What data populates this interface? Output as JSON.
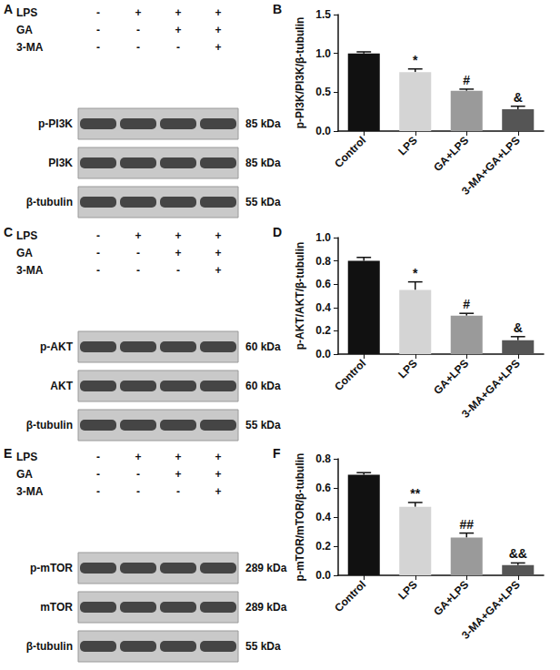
{
  "blots": [
    {
      "panel": "A",
      "treatments": [
        {
          "name": "LPS",
          "lanes": [
            "-",
            "+",
            "+",
            "+"
          ]
        },
        {
          "name": "GA",
          "lanes": [
            "-",
            "-",
            "+",
            "+"
          ]
        },
        {
          "name": "3-MA",
          "lanes": [
            "-",
            "-",
            "-",
            "+"
          ]
        }
      ],
      "bands": [
        {
          "name": "p-PI3K",
          "size": "85 kDa"
        },
        {
          "name": "PI3K",
          "size": "85 kDa"
        },
        {
          "name": "β-tubulin",
          "size": "55 kDa"
        }
      ]
    },
    {
      "panel": "C",
      "treatments": [
        {
          "name": "LPS",
          "lanes": [
            "-",
            "+",
            "+",
            "+"
          ]
        },
        {
          "name": "GA",
          "lanes": [
            "-",
            "-",
            "+",
            "+"
          ]
        },
        {
          "name": "3-MA",
          "lanes": [
            "-",
            "-",
            "-",
            "+"
          ]
        }
      ],
      "bands": [
        {
          "name": "p-AKT",
          "size": "60 kDa"
        },
        {
          "name": "AKT",
          "size": "60 kDa"
        },
        {
          "name": "β-tubulin",
          "size": "55 kDa"
        }
      ]
    },
    {
      "panel": "E",
      "treatments": [
        {
          "name": "LPS",
          "lanes": [
            "-",
            "+",
            "+",
            "+"
          ]
        },
        {
          "name": "GA",
          "lanes": [
            "-",
            "-",
            "+",
            "+"
          ]
        },
        {
          "name": "3-MA",
          "lanes": [
            "-",
            "-",
            "-",
            "+"
          ]
        }
      ],
      "bands": [
        {
          "name": "p-mTOR",
          "size": "289 kDa"
        },
        {
          "name": "mTOR",
          "size": "289 kDa"
        },
        {
          "name": "β-tubulin",
          "size": "55 kDa"
        }
      ]
    }
  ],
  "chart_data": [
    {
      "panel": "B",
      "type": "bar",
      "categories": [
        "Control",
        "LPS",
        "GA+LPS",
        "3-MA+GA+LPS"
      ],
      "values": [
        1.0,
        0.76,
        0.52,
        0.28
      ],
      "errors": [
        0.02,
        0.04,
        0.02,
        0.04
      ],
      "annotations": [
        null,
        "*",
        "#",
        "&"
      ],
      "colors": [
        "#111111",
        "#d4d4d4",
        "#9a9a9a",
        "#555555"
      ],
      "y_label": "p-PI3K/PI3K/β-tubulin",
      "ylim": [
        0,
        1.5
      ],
      "yticks": [
        {
          "value": 0,
          "label": "0.0"
        },
        0.5,
        {
          "value": 1,
          "label": "1.0"
        },
        1.5
      ]
    },
    {
      "panel": "D",
      "type": "bar",
      "categories": [
        "Control",
        "LPS",
        "GA+LPS",
        "3-MA+GA+LPS"
      ],
      "values": [
        0.8,
        0.55,
        0.33,
        0.12
      ],
      "errors": [
        0.03,
        0.07,
        0.02,
        0.03
      ],
      "annotations": [
        null,
        "*",
        "#",
        "&"
      ],
      "colors": [
        "#111111",
        "#d4d4d4",
        "#9a9a9a",
        "#555555"
      ],
      "y_label": "p-AKT/AKT/β-tubulin",
      "ylim": [
        0,
        1.0
      ],
      "yticks": [
        {
          "value": 0,
          "label": "0.0"
        },
        0.2,
        0.4,
        0.6,
        0.8,
        {
          "value": 1,
          "label": "1.0"
        }
      ]
    },
    {
      "panel": "F",
      "type": "bar",
      "categories": [
        "Control",
        "LPS",
        "GA+LPS",
        "3-MA+GA+LPS"
      ],
      "values": [
        0.69,
        0.47,
        0.26,
        0.07
      ],
      "errors": [
        0.015,
        0.03,
        0.03,
        0.015
      ],
      "annotations": [
        null,
        "**",
        "##",
        "&&"
      ],
      "colors": [
        "#111111",
        "#d4d4d4",
        "#9a9a9a",
        "#555555"
      ],
      "y_label": "p-mTOR/mTOR/β-tubulin",
      "ylim": [
        0,
        0.8
      ],
      "yticks": [
        {
          "value": 0,
          "label": "0.0"
        },
        0.2,
        0.4,
        0.6,
        0.8
      ]
    }
  ]
}
